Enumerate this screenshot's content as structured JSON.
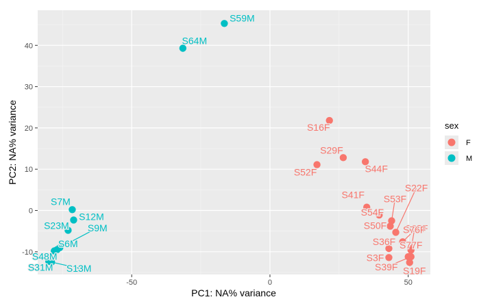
{
  "chart_data": {
    "type": "scatter",
    "xlabel": "PC1: NA% variance",
    "ylabel": "PC2: NA% variance",
    "xlim": [
      -84,
      58
    ],
    "ylim": [
      -15.5,
      48.5
    ],
    "x_ticks": [
      -50,
      0,
      50
    ],
    "x_tick_labels": [
      "-50",
      "0",
      "50"
    ],
    "y_ticks": [
      -10,
      0,
      10,
      20,
      30,
      40
    ],
    "y_tick_labels": [
      "-10",
      "0",
      "10",
      "20",
      "30",
      "40"
    ],
    "grid": true,
    "legend": {
      "title": "sex",
      "position": "right",
      "entries": [
        {
          "label": "F",
          "color": "#F8766D"
        },
        {
          "label": "M",
          "color": "#00BFC4"
        }
      ]
    },
    "series": [
      {
        "name": "F",
        "color": "#F8766D",
        "points": [
          {
            "label": "S16F",
            "x": 21.5,
            "y": 21.8
          },
          {
            "label": "S29F",
            "x": 26.5,
            "y": 12.8
          },
          {
            "label": "S52F",
            "x": 17.0,
            "y": 11.1
          },
          {
            "label": "S44F",
            "x": 34.5,
            "y": 11.8
          },
          {
            "label": "S41F",
            "x": 35.0,
            "y": 0.8
          },
          {
            "label": "S54F",
            "x": 39.5,
            "y": -1.1
          },
          {
            "label": "S53F",
            "x": 44.0,
            "y": -2.5
          },
          {
            "label": "S50F",
            "x": 43.5,
            "y": -3.8
          },
          {
            "label": "S22F",
            "x": 45.5,
            "y": -5.3
          },
          {
            "label": "S35F",
            "x": 48.0,
            "y": -7.6
          },
          {
            "label": "S36F",
            "x": 43.0,
            "y": -9.2
          },
          {
            "label": "S76F",
            "x": 51.0,
            "y": -9.6
          },
          {
            "label": "S3F",
            "x": 43.0,
            "y": -11.4
          },
          {
            "label": "S77F",
            "x": 50.0,
            "y": -11.2
          },
          {
            "label": "S39F",
            "x": 51.0,
            "y": -11.2
          },
          {
            "label": "S19F",
            "x": 50.5,
            "y": -12.6
          }
        ]
      },
      {
        "name": "M",
        "color": "#00BFC4",
        "points": [
          {
            "label": "S59M",
            "x": -16.5,
            "y": 45.3
          },
          {
            "label": "S64M",
            "x": -31.5,
            "y": 39.3
          },
          {
            "label": "S7M",
            "x": -71.5,
            "y": 0.2
          },
          {
            "label": "S12M",
            "x": -71.0,
            "y": -2.3
          },
          {
            "label": "S23M",
            "x": -73.0,
            "y": -4.8
          },
          {
            "label": "S9M",
            "x": -76.0,
            "y": -9.0
          },
          {
            "label": "S6M",
            "x": -77.0,
            "y": -9.5
          },
          {
            "label": "S48M",
            "x": -78.0,
            "y": -9.8
          },
          {
            "label": "S31M",
            "x": -80.0,
            "y": -12.3
          },
          {
            "label": "S13M",
            "x": -79.0,
            "y": -12.5
          }
        ]
      }
    ]
  }
}
